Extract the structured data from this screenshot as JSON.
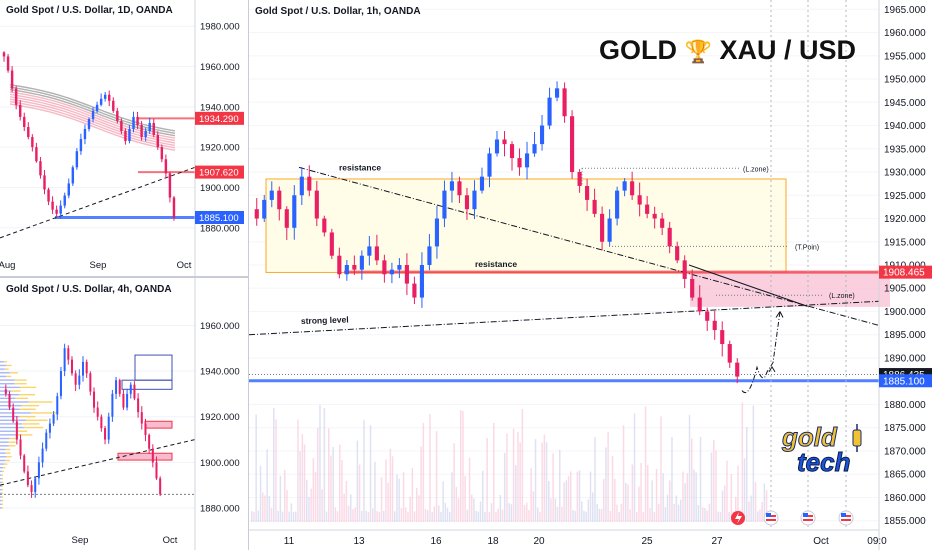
{
  "brand": {
    "text_left": "GOLD",
    "trophy": "🏆",
    "text_right": "XAU / USD",
    "logo_top": "gold",
    "logo_bottom": "tech"
  },
  "panels": {
    "daily": {
      "title": "Gold Spot / U.S. Dollar, 1D, OANDA"
    },
    "h4": {
      "title": "Gold Spot / U.S. Dollar, 4h, OANDA"
    },
    "h1": {
      "title": "Gold Spot / U.S. Dollar, 1h, OANDA"
    }
  },
  "colors": {
    "up": "#2962ff",
    "down": "#e91e63",
    "level_red": "#f23645",
    "level_blue": "#2962ff",
    "zone_yellow": "#f9a825"
  },
  "chart_data": [
    {
      "type": "candlestick",
      "title": "Gold Spot / U.S. Dollar, 1D, OANDA",
      "x_ticks": [
        "Aug",
        "Sep",
        "Oct"
      ],
      "y_ticks": [
        "1980.000",
        "1960.000",
        "1940.000",
        "1920.000",
        "1900.000",
        "1880.000"
      ],
      "ylim": [
        1866,
        1993
      ],
      "price_labels": [
        {
          "value": 1934.29,
          "label": "1934.290",
          "color": "#f23645"
        },
        {
          "value": 1907.62,
          "label": "1907.620",
          "color": "#f23645"
        },
        {
          "value": 1885.1,
          "label": "1885.100",
          "color": "#2962ff"
        }
      ],
      "close_path": [
        1965,
        1958,
        1949,
        1941,
        1935,
        1930,
        1925,
        1920,
        1913,
        1906,
        1899,
        1893,
        1889,
        1887,
        1891,
        1896,
        1902,
        1910,
        1918,
        1924,
        1929,
        1934,
        1938,
        1941,
        1944,
        1946,
        1943,
        1938,
        1933,
        1928,
        1923,
        1929,
        1935,
        1931,
        1925,
        1928,
        1932,
        1926,
        1920,
        1914,
        1907,
        1895,
        1885
      ]
    },
    {
      "type": "candlestick",
      "title": "Gold Spot / U.S. Dollar, 4h, OANDA",
      "x_ticks": [
        "Sep",
        "Oct"
      ],
      "y_ticks": [
        "1960.000",
        "1940.000",
        "1920.000",
        "1900.000",
        "1880.000"
      ],
      "ylim": [
        1873,
        1972
      ],
      "close_path": [
        1930,
        1924,
        1918,
        1910,
        1903,
        1896,
        1890,
        1887,
        1893,
        1900,
        1906,
        1913,
        1917,
        1921,
        1929,
        1940,
        1950,
        1945,
        1939,
        1934,
        1938,
        1944,
        1939,
        1931,
        1924,
        1920,
        1915,
        1910,
        1920,
        1930,
        1936,
        1930,
        1924,
        1930,
        1934,
        1928,
        1922,
        1917,
        1912,
        1906,
        1900,
        1893,
        1886
      ]
    },
    {
      "type": "candlestick",
      "title": "Gold Spot / U.S. Dollar, 1h, OANDA",
      "x_ticks": [
        "11",
        "13",
        "16",
        "18",
        "20",
        "25",
        "27",
        "Oct",
        "09:0"
      ],
      "y_ticks": [
        "1965.000",
        "1960.000",
        "1955.000",
        "1950.000",
        "1945.000",
        "1940.000",
        "1935.000",
        "1930.000",
        "1925.000",
        "1920.000",
        "1915.000",
        "1910.000",
        "1905.000",
        "1900.000",
        "1895.000",
        "1890.000",
        "1885.000",
        "1880.000",
        "1875.000",
        "1870.000",
        "1865.000",
        "1860.000",
        "1855.000"
      ],
      "ylim": [
        1853,
        1967
      ],
      "price_labels": [
        {
          "value": 1908.465,
          "label": "1908.465",
          "color": "#f23645"
        },
        {
          "value": 1886.435,
          "label": "1886.435",
          "color": "#131722"
        },
        {
          "value": 1885.1,
          "label": "1885.100",
          "color": "#2962ff"
        }
      ],
      "annotations": [
        "resistance",
        "resistance",
        "strong level",
        "(L.zone)",
        "(T.Poin)",
        "(L.zone)"
      ],
      "close_path": [
        1920,
        1924,
        1926,
        1922,
        1918,
        1925,
        1929,
        1926,
        1920,
        1917,
        1912,
        1908,
        1910,
        1909,
        1912,
        1914,
        1911,
        1908,
        1909,
        1910,
        1906,
        1903,
        1910,
        1914,
        1920,
        1926,
        1928,
        1925,
        1922,
        1926,
        1929,
        1934,
        1937,
        1936,
        1933,
        1931,
        1934,
        1936,
        1940,
        1946,
        1948,
        1942,
        1930,
        1927,
        1924,
        1921,
        1915,
        1920,
        1926,
        1928,
        1925,
        1923,
        1921,
        1920,
        1918,
        1914,
        1911,
        1907,
        1903,
        1900,
        1898,
        1896,
        1893,
        1889,
        1886
      ]
    }
  ]
}
